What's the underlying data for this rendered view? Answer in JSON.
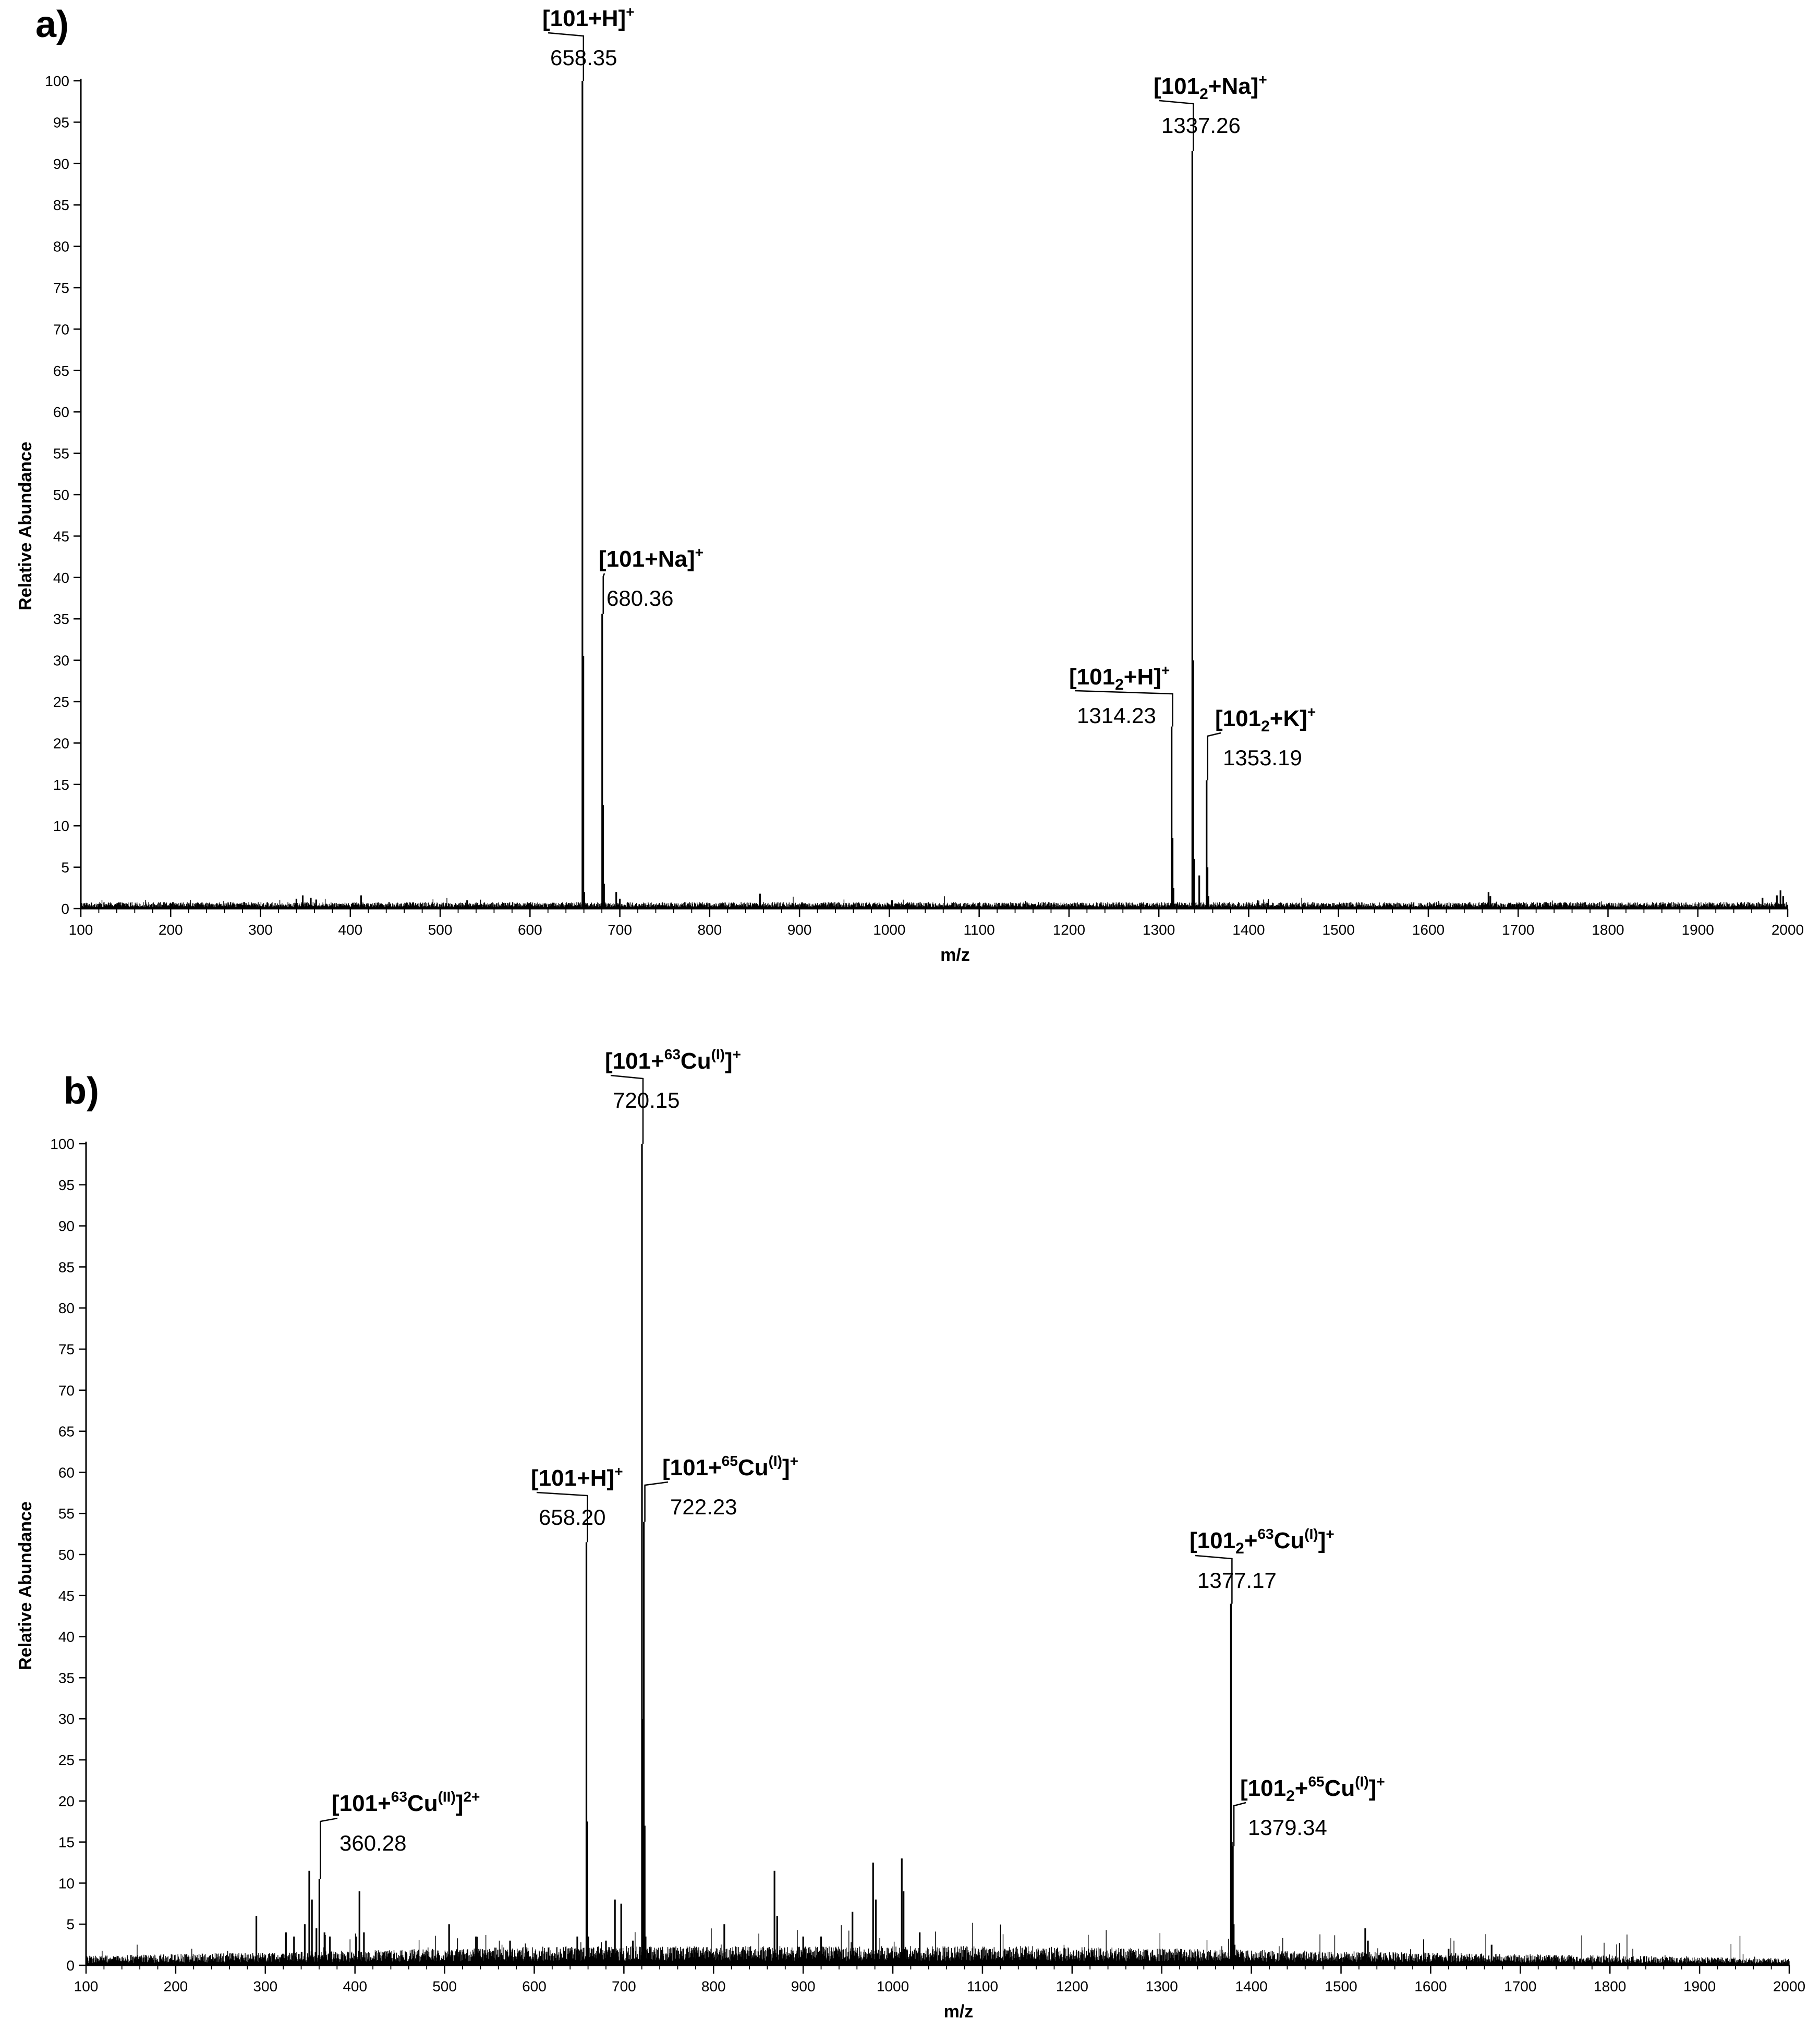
{
  "chart_data": [
    {
      "panel": "a)",
      "type": "line",
      "subtype": "mass-spectrum",
      "title": "",
      "xlabel": "m/z",
      "ylabel": "Relative Abundance",
      "xlim": [
        100,
        2000
      ],
      "ylim": [
        0,
        100
      ],
      "xticks": [
        100,
        200,
        300,
        400,
        500,
        600,
        700,
        800,
        900,
        1000,
        1100,
        1200,
        1300,
        1400,
        1500,
        1600,
        1700,
        1800,
        1900,
        2000
      ],
      "yticks": [
        0,
        5,
        10,
        15,
        20,
        25,
        30,
        35,
        40,
        45,
        50,
        55,
        60,
        65,
        70,
        75,
        80,
        85,
        90,
        95,
        100
      ],
      "grid": false,
      "noise_level": 0.6,
      "peaks": [
        {
          "x": 340,
          "y": 1.2
        },
        {
          "x": 347,
          "y": 1.6
        },
        {
          "x": 356,
          "y": 1.3
        },
        {
          "x": 362,
          "y": 1.1
        },
        {
          "x": 412,
          "y": 1.6
        },
        {
          "x": 530,
          "y": 1.0
        },
        {
          "x": 658.35,
          "y": 100
        },
        {
          "x": 659.4,
          "y": 30.5
        },
        {
          "x": 660.4,
          "y": 2.0
        },
        {
          "x": 680.36,
          "y": 35.6
        },
        {
          "x": 681.4,
          "y": 12.5
        },
        {
          "x": 682.4,
          "y": 3.0
        },
        {
          "x": 696,
          "y": 2.0
        },
        {
          "x": 700,
          "y": 1.2
        },
        {
          "x": 856,
          "y": 1.8
        },
        {
          "x": 1003,
          "y": 1.0
        },
        {
          "x": 1314.23,
          "y": 22.0
        },
        {
          "x": 1315.3,
          "y": 8.5
        },
        {
          "x": 1316.3,
          "y": 2.5
        },
        {
          "x": 1337.26,
          "y": 91.5
        },
        {
          "x": 1338.3,
          "y": 30.0
        },
        {
          "x": 1339.3,
          "y": 6.0
        },
        {
          "x": 1345,
          "y": 4.0
        },
        {
          "x": 1353.19,
          "y": 15.5
        },
        {
          "x": 1354.2,
          "y": 5.0
        },
        {
          "x": 1355.2,
          "y": 1.5
        },
        {
          "x": 1410,
          "y": 1.0
        },
        {
          "x": 1667,
          "y": 2.0
        },
        {
          "x": 1669,
          "y": 1.5
        },
        {
          "x": 1972,
          "y": 1.3
        },
        {
          "x": 1988,
          "y": 1.6
        },
        {
          "x": 1992,
          "y": 2.2
        },
        {
          "x": 1995,
          "y": 1.5
        }
      ],
      "annotations": [
        {
          "label": "[101+H]",
          "charge": "+",
          "value": "658.35",
          "x": 658.35,
          "y": 100
        },
        {
          "label": "[101+Na]",
          "charge": "+",
          "value": "680.36",
          "x": 680.36,
          "y": 35.6
        },
        {
          "label": "[101",
          "sub": "2",
          "label_tail": "+H]",
          "charge": "+",
          "value": "1314.23",
          "x": 1314.23,
          "y": 22.0
        },
        {
          "label": "[101",
          "sub": "2",
          "label_tail": "+Na]",
          "charge": "+",
          "value": "1337.26",
          "x": 1337.26,
          "y": 91.5
        },
        {
          "label": "[101",
          "sub": "2",
          "label_tail": "+K]",
          "charge": "+",
          "value": "1353.19",
          "x": 1353.19,
          "y": 15.5
        }
      ]
    },
    {
      "panel": "b)",
      "type": "line",
      "subtype": "mass-spectrum",
      "title": "",
      "xlabel": "m/z",
      "ylabel": "Relative Abundance",
      "xlim": [
        100,
        2000
      ],
      "ylim": [
        0,
        100
      ],
      "xticks": [
        100,
        200,
        300,
        400,
        500,
        600,
        700,
        800,
        900,
        1000,
        1100,
        1200,
        1300,
        1400,
        1500,
        1600,
        1700,
        1800,
        1900,
        2000
      ],
      "yticks": [
        0,
        5,
        10,
        15,
        20,
        25,
        30,
        35,
        40,
        45,
        50,
        55,
        60,
        65,
        70,
        75,
        80,
        85,
        90,
        95,
        100
      ],
      "grid": false,
      "noise_level": 1.5,
      "peaks": [
        {
          "x": 290,
          "y": 6.0
        },
        {
          "x": 323,
          "y": 4.0
        },
        {
          "x": 332,
          "y": 3.5
        },
        {
          "x": 344,
          "y": 5.0
        },
        {
          "x": 349,
          "y": 11.5
        },
        {
          "x": 352,
          "y": 8.0
        },
        {
          "x": 357,
          "y": 4.5
        },
        {
          "x": 360.28,
          "y": 10.5
        },
        {
          "x": 366,
          "y": 4.0
        },
        {
          "x": 372,
          "y": 3.5
        },
        {
          "x": 405,
          "y": 9.0
        },
        {
          "x": 410,
          "y": 4.0
        },
        {
          "x": 505,
          "y": 5.0
        },
        {
          "x": 535,
          "y": 3.5
        },
        {
          "x": 573,
          "y": 3.0
        },
        {
          "x": 648,
          "y": 3.5
        },
        {
          "x": 658.2,
          "y": 51.5
        },
        {
          "x": 659.3,
          "y": 17.5
        },
        {
          "x": 660.3,
          "y": 3.5
        },
        {
          "x": 680,
          "y": 3.0
        },
        {
          "x": 690,
          "y": 8.0
        },
        {
          "x": 697,
          "y": 7.5
        },
        {
          "x": 710,
          "y": 3.0
        },
        {
          "x": 720.15,
          "y": 100
        },
        {
          "x": 721.2,
          "y": 30.0
        },
        {
          "x": 722.23,
          "y": 54.0
        },
        {
          "x": 723.2,
          "y": 17.0
        },
        {
          "x": 724.2,
          "y": 3.5
        },
        {
          "x": 812,
          "y": 5.0
        },
        {
          "x": 868,
          "y": 11.5
        },
        {
          "x": 871,
          "y": 6.0
        },
        {
          "x": 900,
          "y": 3.5
        },
        {
          "x": 920,
          "y": 3.5
        },
        {
          "x": 955,
          "y": 6.5
        },
        {
          "x": 978,
          "y": 12.5
        },
        {
          "x": 981,
          "y": 8.0
        },
        {
          "x": 1010,
          "y": 13.0
        },
        {
          "x": 1012,
          "y": 9.0
        },
        {
          "x": 1030,
          "y": 4.0
        },
        {
          "x": 1377.17,
          "y": 44.0
        },
        {
          "x": 1378.2,
          "y": 15.0
        },
        {
          "x": 1379.34,
          "y": 14.5
        },
        {
          "x": 1380.3,
          "y": 5.0
        },
        {
          "x": 1381.3,
          "y": 2.5
        },
        {
          "x": 1527,
          "y": 4.5
        },
        {
          "x": 1530,
          "y": 3.0
        },
        {
          "x": 1620,
          "y": 2.0
        },
        {
          "x": 1668,
          "y": 2.5
        }
      ],
      "annotations": [
        {
          "label": "[101+",
          "iso": "63",
          "label_tail": "Cu",
          "ox": "(II)",
          "label_end": "]",
          "charge": "2+",
          "value": "360.28",
          "x": 360.28,
          "y": 10.5
        },
        {
          "label": "[101+H]",
          "charge": "+",
          "value": "658.20",
          "x": 658.2,
          "y": 51.5
        },
        {
          "label": "[101+",
          "iso": "63",
          "label_tail": "Cu",
          "ox": "(I)",
          "label_end": "]",
          "charge": "+",
          "value": "720.15",
          "x": 720.15,
          "y": 100
        },
        {
          "label": "[101+",
          "iso": "65",
          "label_tail": "Cu",
          "ox": "(I)",
          "label_end": "]",
          "charge": "+",
          "value": "722.23",
          "x": 722.23,
          "y": 54.0
        },
        {
          "label": "[101",
          "sub": "2",
          "label_tail": "+",
          "iso": "63",
          "label_tail2": "Cu",
          "ox": "(I)",
          "label_end": "]",
          "charge": "+",
          "value": "1377.17",
          "x": 1377.17,
          "y": 44.0
        },
        {
          "label": "[101",
          "sub": "2",
          "label_tail": "+",
          "iso": "65",
          "label_tail2": "Cu",
          "ox": "(I)",
          "label_end": "]",
          "charge": "+",
          "value": "1379.34",
          "x": 1379.34,
          "y": 14.5
        }
      ]
    }
  ]
}
